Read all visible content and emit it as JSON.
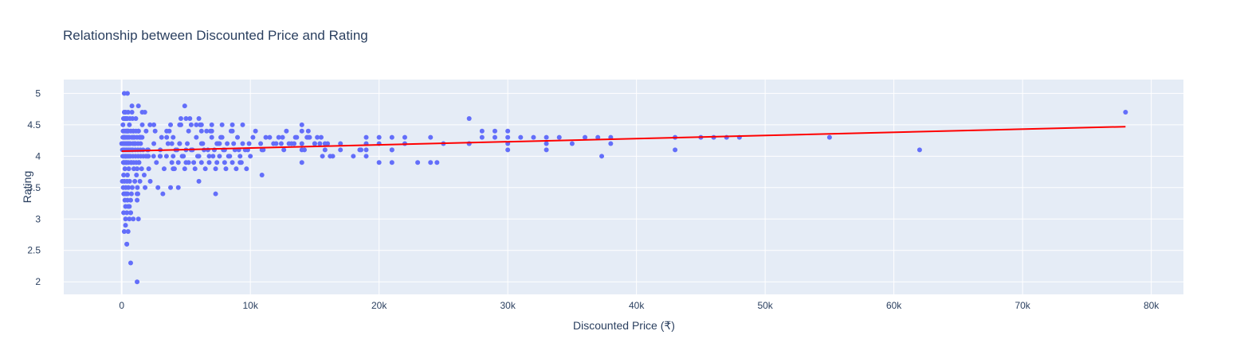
{
  "chart_data": {
    "type": "scatter",
    "title": "Relationship between Discounted Price and Rating",
    "xlabel": "Discounted Price (₹)",
    "ylabel": "Rating",
    "xlim": [
      -4500,
      82500
    ],
    "ylim": [
      1.8,
      5.22
    ],
    "x_ticks": [
      0,
      10000,
      20000,
      30000,
      40000,
      50000,
      60000,
      70000,
      80000
    ],
    "x_tick_labels": [
      "0",
      "10k",
      "20k",
      "30k",
      "40k",
      "50k",
      "60k",
      "70k",
      "80k"
    ],
    "y_ticks": [
      2,
      2.5,
      3,
      3.5,
      4,
      4.5,
      5
    ],
    "y_tick_labels": [
      "2",
      "2.5",
      "3",
      "3.5",
      "4",
      "4.5",
      "5"
    ],
    "grid": true,
    "legend": "none",
    "colors": {
      "background": "#e5ecf6",
      "grid": "#ffffff",
      "points": "#636efa",
      "trend": "#ff0000"
    },
    "series": [
      {
        "type": "scatter",
        "x": [
          0,
          100,
          150,
          200,
          300,
          500,
          800,
          1000,
          1200,
          1500,
          2000,
          2500,
          3000,
          3500,
          4000,
          4500,
          5000,
          100,
          200,
          300,
          400,
          600,
          900,
          1100,
          1300,
          1600,
          1900,
          2200,
          2600,
          3100,
          3600,
          150,
          250,
          350,
          450,
          550,
          750,
          950,
          1150,
          1350,
          1550,
          1750,
          2100,
          2700,
          3300,
          3900,
          50,
          120,
          220,
          320,
          420,
          520,
          620,
          820,
          1020,
          1220,
          1420,
          1820,
          2220,
          2820,
          80,
          180,
          280,
          380,
          480,
          580,
          680,
          880,
          1080,
          1280,
          1480,
          1680,
          1880,
          2080,
          2480,
          2980,
          3480,
          60,
          160,
          260,
          360,
          460,
          560,
          660,
          860,
          1060,
          1260,
          1460,
          1660,
          2060,
          70,
          170,
          270,
          370,
          470,
          570,
          670,
          870,
          1070,
          1270,
          1470,
          90,
          190,
          290,
          390,
          490,
          590,
          790,
          990,
          1190,
          1390,
          1590,
          110,
          210,
          310,
          410,
          510,
          710,
          910,
          1110,
          1310,
          130,
          230,
          330,
          430,
          530,
          730,
          930,
          1130,
          1330,
          140,
          240,
          340,
          440,
          640,
          840,
          160,
          260,
          360,
          460,
          760,
          1260,
          200,
          300,
          500,
          800,
          250,
          450,
          700,
          300,
          500,
          150,
          400,
          700,
          600,
          900,
          1300,
          300,
          500,
          800,
          1300,
          1800,
          200,
          450,
          300,
          700,
          1200,
          200,
          400,
          1600,
          700,
          1200,
          400,
          600,
          1200,
          500,
          900,
          1400,
          2000,
          2500,
          3000,
          3500,
          3200,
          3800,
          4000,
          4500,
          5200,
          5800,
          6200,
          6600,
          7000,
          7400,
          7800,
          8200,
          8600,
          9000,
          9400,
          9800,
          10200,
          4200,
          4800,
          5400,
          6000,
          6400,
          6800,
          7200,
          7600,
          8000,
          8400,
          8800,
          9200,
          9600,
          10000,
          4400,
          5000,
          5600,
          6200,
          6800,
          7400,
          8000,
          8600,
          9200,
          3800,
          4600,
          5400,
          6200,
          7000,
          7800,
          8600,
          9400,
          4100,
          4900,
          5700,
          6500,
          7300,
          8100,
          8900,
          9700,
          3700,
          4500,
          5300,
          6100,
          6900,
          7700,
          8500,
          3900,
          5100,
          6300,
          7500,
          8700,
          9900,
          4300,
          5500,
          6700,
          7900,
          9100,
          4700,
          5900,
          7100,
          8300,
          5000,
          6000,
          7000,
          4000,
          5200,
          4400,
          4900,
          6200,
          6000,
          7300,
          4600,
          5800,
          7600,
          9300,
          10400,
          10900,
          11500,
          12000,
          12500,
          13000,
          13500,
          14000,
          14500,
          15000,
          15500,
          16000,
          11000,
          12200,
          12800,
          13400,
          14000,
          14600,
          15200,
          15800,
          17000,
          10800,
          11800,
          12600,
          13600,
          14400,
          15400,
          16400,
          11200,
          12400,
          13200,
          14200,
          15000,
          15800,
          14000,
          14500,
          14000,
          14000,
          10900,
          15600,
          16200,
          17000,
          18000,
          18500,
          19000,
          20000,
          21000,
          22000,
          19000,
          20000,
          21000,
          22000,
          18600,
          19000,
          21000,
          19000,
          20000,
          21000,
          23000,
          24000,
          24500,
          24000,
          25000,
          27000,
          28000,
          29000,
          30000,
          31000,
          32000,
          33000,
          34000,
          35000,
          36000,
          37000,
          38000,
          27000,
          28000,
          29000,
          30000,
          30000,
          33000,
          30000,
          27000,
          33000,
          37300,
          38000,
          43000,
          43000,
          45000,
          46000,
          47000,
          48000,
          55000,
          62000,
          78000
        ],
        "y": [
          4.2,
          4.1,
          3.9,
          4.3,
          4.0,
          4.4,
          4.1,
          4.2,
          3.8,
          4.3,
          4.0,
          4.2,
          4.1,
          4.3,
          4.0,
          4.2,
          4.1,
          4.5,
          4.3,
          4.6,
          4.4,
          4.5,
          4.3,
          4.6,
          4.4,
          4.5,
          4.4,
          4.5,
          4.4,
          4.3,
          4.2,
          3.7,
          3.8,
          3.9,
          3.7,
          3.8,
          3.9,
          3.8,
          3.7,
          3.9,
          3.8,
          3.7,
          3.8,
          3.9,
          3.8,
          3.9,
          3.6,
          3.5,
          3.6,
          3.5,
          3.6,
          3.5,
          3.6,
          3.5,
          3.6,
          3.5,
          3.6,
          3.5,
          3.6,
          3.5,
          4.0,
          4.0,
          4.0,
          4.0,
          4.0,
          4.0,
          4.0,
          4.0,
          4.0,
          4.0,
          4.0,
          4.0,
          4.0,
          4.0,
          4.0,
          4.0,
          4.0,
          4.1,
          4.1,
          4.1,
          4.1,
          4.1,
          4.1,
          4.1,
          4.1,
          4.1,
          4.1,
          4.1,
          4.1,
          4.1,
          4.2,
          4.2,
          4.2,
          4.2,
          4.2,
          4.2,
          4.2,
          4.2,
          4.2,
          4.2,
          4.2,
          4.3,
          4.3,
          4.3,
          4.3,
          4.3,
          4.3,
          4.3,
          4.3,
          4.3,
          4.3,
          4.3,
          4.4,
          4.4,
          4.4,
          4.4,
          4.4,
          4.4,
          4.4,
          4.4,
          4.4,
          3.9,
          3.9,
          3.9,
          3.9,
          3.9,
          3.9,
          3.9,
          3.9,
          3.9,
          4.6,
          4.6,
          4.6,
          4.6,
          4.6,
          4.6,
          3.4,
          3.4,
          3.4,
          3.4,
          3.4,
          3.4,
          4.7,
          4.7,
          4.7,
          4.7,
          3.3,
          3.3,
          3.3,
          3.2,
          3.2,
          3.1,
          3.1,
          3.1,
          3.0,
          3.0,
          3.0,
          2.9,
          2.8,
          4.8,
          4.8,
          4.7,
          5.0,
          5.0,
          3.0,
          3.1,
          3.3,
          2.8,
          2.6,
          4.7,
          2.3,
          2.0,
          2.6,
          3.2,
          3.4,
          4.2,
          4.4,
          4.3,
          4.1,
          4.5,
          4.0,
          4.4,
          3.4,
          3.5,
          4.3,
          4.2,
          4.4,
          4.3,
          4.2,
          4.4,
          4.3,
          4.2,
          4.3,
          4.2,
          4.4,
          4.3,
          4.2,
          4.1,
          4.3,
          4.1,
          4.0,
          4.1,
          4.0,
          4.1,
          4.0,
          4.1,
          4.0,
          4.1,
          4.0,
          4.1,
          4.0,
          4.1,
          4.0,
          3.9,
          3.9,
          3.9,
          3.9,
          3.9,
          3.9,
          3.9,
          3.9,
          3.9,
          4.5,
          4.5,
          4.5,
          4.5,
          4.5,
          4.5,
          4.5,
          4.5,
          3.8,
          3.8,
          3.8,
          3.8,
          3.8,
          3.8,
          3.8,
          3.8,
          4.4,
          4.5,
          4.6,
          4.5,
          4.4,
          4.3,
          4.4,
          4.2,
          4.2,
          4.2,
          4.2,
          4.2,
          4.2,
          4.1,
          4.1,
          4.1,
          4.1,
          4.1,
          4.0,
          4.0,
          4.0,
          4.0,
          4.6,
          4.6,
          4.4,
          3.8,
          3.9,
          3.5,
          4.8,
          4.4,
          3.6,
          3.4,
          4.6,
          4.5,
          4.2,
          3.9,
          4.4,
          4.1,
          4.3,
          4.2,
          4.3,
          4.2,
          4.3,
          4.2,
          4.3,
          4.2,
          4.3,
          4.2,
          4.1,
          4.3,
          4.4,
          4.2,
          4.4,
          4.3,
          4.3,
          4.1,
          4.2,
          4.2,
          4.2,
          4.1,
          4.3,
          4.3,
          4.2,
          4.0,
          4.3,
          4.2,
          4.2,
          4.1,
          4.2,
          4.2,
          4.1,
          4.4,
          4.5,
          3.9,
          3.7,
          4.0,
          4.0,
          4.1,
          4.0,
          4.1,
          4.0,
          4.3,
          4.3,
          4.3,
          4.2,
          4.2,
          4.1,
          4.2,
          4.1,
          4.3,
          3.9,
          4.1,
          3.9,
          4.1,
          3.9,
          3.9,
          3.9,
          4.3,
          4.2,
          4.6,
          4.4,
          4.4,
          4.4,
          4.3,
          4.3,
          4.3,
          4.3,
          4.2,
          4.3,
          4.3,
          4.3,
          4.2,
          4.3,
          4.3,
          4.3,
          4.1,
          4.1,
          4.2,
          4.2,
          4.2,
          4.0,
          4.2,
          4.3,
          4.1,
          4.3,
          4.3,
          4.3,
          4.3,
          4.3,
          4.1,
          4.7
        ]
      },
      {
        "type": "line",
        "x": [
          0,
          78000
        ],
        "y": [
          4.08,
          4.47
        ]
      }
    ]
  }
}
